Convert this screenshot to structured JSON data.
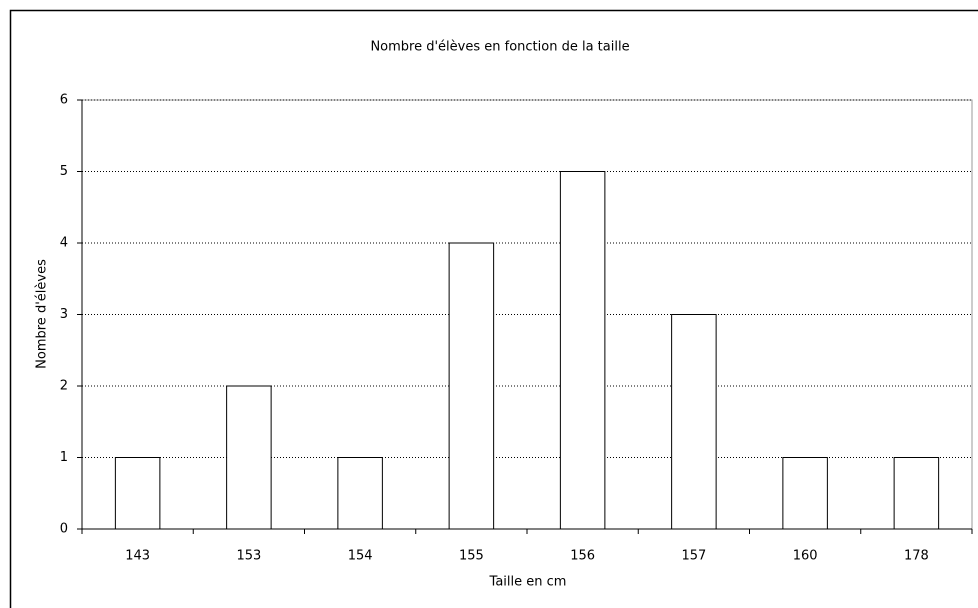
{
  "chart_data": {
    "type": "bar",
    "title": "Nombre d'élèves en fonction de la taille",
    "x_label": "Taille en cm",
    "y_label": "Nombre d'élèves",
    "categories": [
      "143",
      "153",
      "154",
      "155",
      "156",
      "157",
      "160",
      "178"
    ],
    "values": [
      1,
      2,
      1,
      4,
      5,
      3,
      1,
      1
    ],
    "color": "#ffffff",
    "ylim": [
      0,
      6
    ],
    "yticks": [
      0,
      1,
      2,
      3,
      4,
      5,
      6
    ],
    "grid": true
  }
}
